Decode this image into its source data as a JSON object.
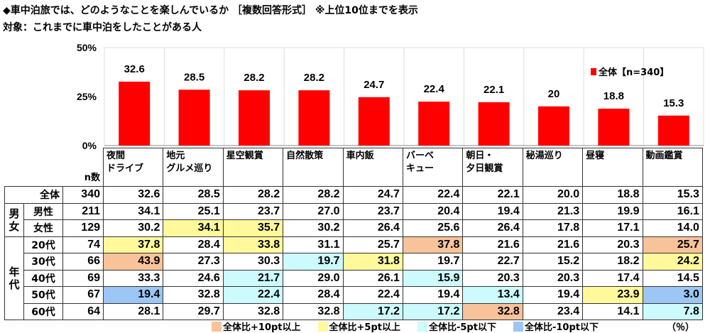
{
  "title": "◆車中泊旅では、どのようなことを楽しんでいるか ［複数回答形式］ ※上位10位までを表示",
  "subtitle": "対象：これまでに車中泊をしたことがある人",
  "chart_data": {
    "type": "bar",
    "categories": [
      "夜間ドライブ",
      "地元グルメ巡り",
      "星空観賞",
      "自然散策",
      "車内飯",
      "バーベキュー",
      "朝日・夕日観賞",
      "秘湯巡り",
      "昼寝",
      "動画鑑賞"
    ],
    "series": [
      {
        "name": "全体【n=340】",
        "values": [
          32.6,
          28.5,
          28.2,
          28.2,
          24.7,
          22.4,
          22.1,
          20.0,
          18.8,
          15.3
        ]
      }
    ],
    "ylim": [
      0,
      50
    ],
    "yticks": [
      "0%",
      "25%",
      "50%"
    ],
    "bar_color": "#ff0000",
    "legend_placement": "top-right"
  },
  "table": {
    "header_lines": [
      [
        "夜間",
        "ドライブ"
      ],
      [
        "地元",
        "グルメ巡り"
      ],
      [
        "星空観賞"
      ],
      [
        "自然散策"
      ],
      [
        "車内飯"
      ],
      [
        "バーベ",
        "キュー"
      ],
      [
        "朝日・",
        "夕日観賞"
      ],
      [
        "秘湯巡り"
      ],
      [
        "昼寝"
      ],
      [
        "動画鑑賞"
      ]
    ],
    "n_label": "n数",
    "groups": [
      {
        "label": "男女",
        "rows": 2
      },
      {
        "label": "年代",
        "rows": 5
      }
    ],
    "rows": [
      {
        "label": "全体",
        "n": "340",
        "values": [
          "32.6",
          "28.5",
          "28.2",
          "28.2",
          "24.7",
          "22.4",
          "22.1",
          "20.0",
          "18.8",
          "15.3"
        ],
        "hl": [
          "",
          "",
          "",
          "",
          "",
          "",
          "",
          "",
          "",
          ""
        ]
      },
      {
        "label": "男性",
        "n": "211",
        "values": [
          "34.1",
          "25.1",
          "23.7",
          "27.0",
          "23.7",
          "20.4",
          "19.4",
          "21.3",
          "19.9",
          "16.1"
        ],
        "hl": [
          "",
          "",
          "",
          "",
          "",
          "",
          "",
          "",
          "",
          ""
        ]
      },
      {
        "label": "女性",
        "n": "129",
        "values": [
          "30.2",
          "34.1",
          "35.7",
          "30.2",
          "26.4",
          "25.6",
          "26.4",
          "17.8",
          "17.1",
          "14.0"
        ],
        "hl": [
          "",
          "y",
          "y",
          "",
          "",
          "",
          "",
          "",
          "",
          ""
        ]
      },
      {
        "label": "20代",
        "n": "74",
        "values": [
          "37.8",
          "28.4",
          "33.8",
          "31.1",
          "25.7",
          "37.8",
          "21.6",
          "21.6",
          "20.3",
          "25.7"
        ],
        "hl": [
          "y",
          "",
          "y",
          "",
          "",
          "o",
          "",
          "",
          "",
          "o"
        ]
      },
      {
        "label": "30代",
        "n": "66",
        "values": [
          "43.9",
          "27.3",
          "30.3",
          "19.7",
          "31.8",
          "19.7",
          "22.7",
          "15.2",
          "18.2",
          "24.2"
        ],
        "hl": [
          "o",
          "",
          "",
          "c",
          "y",
          "",
          "",
          "",
          "",
          "y"
        ]
      },
      {
        "label": "40代",
        "n": "69",
        "values": [
          "33.3",
          "24.6",
          "21.7",
          "29.0",
          "26.1",
          "15.9",
          "20.3",
          "20.3",
          "17.4",
          "14.5"
        ],
        "hl": [
          "",
          "",
          "c",
          "",
          "",
          "c",
          "",
          "",
          "",
          ""
        ]
      },
      {
        "label": "50代",
        "n": "67",
        "values": [
          "19.4",
          "32.8",
          "22.4",
          "28.4",
          "22.4",
          "19.4",
          "13.4",
          "19.4",
          "23.9",
          "3.0"
        ],
        "hl": [
          "b",
          "",
          "c",
          "",
          "",
          "",
          "c",
          "",
          "y",
          "b"
        ]
      },
      {
        "label": "60代",
        "n": "64",
        "values": [
          "28.1",
          "29.7",
          "32.8",
          "32.8",
          "17.2",
          "17.2",
          "32.8",
          "23.4",
          "14.1",
          "7.8"
        ],
        "hl": [
          "",
          "",
          "",
          "",
          "c",
          "c",
          "o",
          "",
          "",
          "c"
        ]
      }
    ]
  },
  "legend": [
    {
      "label": "全体比+10pt以上",
      "color": "#f9c39a"
    },
    {
      "label": "全体比+5pt以上",
      "color": "#fff99c"
    },
    {
      "label": "全体比-5pt以下",
      "color": "#cdfbfd"
    },
    {
      "label": "全体比-10pt以下",
      "color": "#9cc7f5"
    }
  ],
  "unit": "（％）"
}
